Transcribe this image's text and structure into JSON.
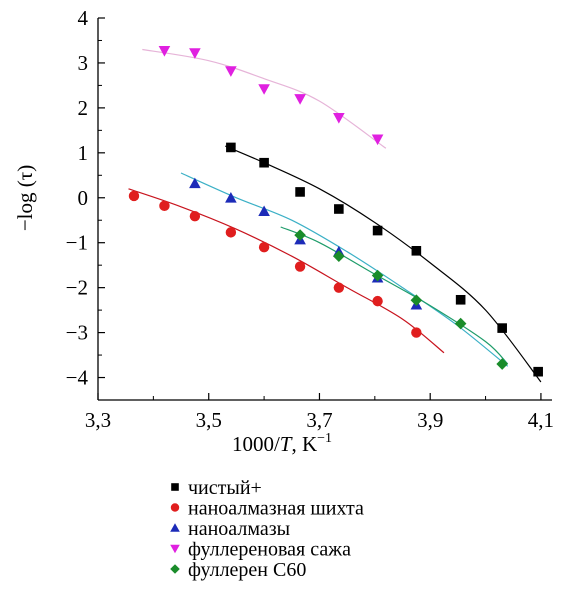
{
  "chart_data": {
    "type": "scatter",
    "xlabel": "1000/T, K⁻¹",
    "xlabel_parts": {
      "prefix": "1000/",
      "italic": "T",
      "suffix": ", K",
      "sup": "−1"
    },
    "ylabel": "−log (τ)",
    "xlim": [
      3.3,
      4.12
    ],
    "ylim": [
      -4.5,
      4
    ],
    "x_ticks": [
      3.3,
      3.5,
      3.7,
      3.9,
      4.1
    ],
    "x_tick_labels": [
      "3,3",
      "3,5",
      "3,7",
      "3,9",
      "4,1"
    ],
    "y_ticks": [
      -4,
      -3,
      -2,
      -1,
      0,
      1,
      2,
      3,
      4
    ],
    "y_tick_labels": [
      "−4",
      "−3",
      "−2",
      "−1",
      "0",
      "1",
      "2",
      "3",
      "4"
    ],
    "grid": false,
    "legend_position": "bottom",
    "series": [
      {
        "name": "чистый+",
        "marker": "square",
        "color": "#000000",
        "line_color": "#000000",
        "points": [
          [
            3.54,
            1.12
          ],
          [
            3.6,
            0.78
          ],
          [
            3.665,
            0.13
          ],
          [
            3.735,
            -0.25
          ],
          [
            3.805,
            -0.73
          ],
          [
            3.875,
            -1.18
          ],
          [
            3.955,
            -2.27
          ],
          [
            4.03,
            -2.9
          ],
          [
            4.095,
            -3.87
          ]
        ],
        "fit": [
          [
            3.53,
            1.15
          ],
          [
            3.6,
            0.78
          ],
          [
            3.7,
            0.2
          ],
          [
            3.8,
            -0.55
          ],
          [
            3.9,
            -1.45
          ],
          [
            4.0,
            -2.5
          ],
          [
            4.1,
            -4.1
          ]
        ]
      },
      {
        "name": "наноалмазная шихта",
        "marker": "circle",
        "color": "#e01e1e",
        "line_color": "#c8141e",
        "points": [
          [
            3.365,
            0.04
          ],
          [
            3.42,
            -0.18
          ],
          [
            3.475,
            -0.41
          ],
          [
            3.54,
            -0.77
          ],
          [
            3.6,
            -1.1
          ],
          [
            3.665,
            -1.53
          ],
          [
            3.735,
            -2.0
          ],
          [
            3.805,
            -2.3
          ],
          [
            3.875,
            -3.0
          ]
        ],
        "fit": [
          [
            3.355,
            0.2
          ],
          [
            3.45,
            -0.2
          ],
          [
            3.55,
            -0.7
          ],
          [
            3.65,
            -1.3
          ],
          [
            3.75,
            -2.0
          ],
          [
            3.85,
            -2.7
          ],
          [
            3.925,
            -3.45
          ]
        ]
      },
      {
        "name": "наноалмазы",
        "marker": "triangle",
        "color": "#1c2bb8",
        "line_color": "#3bb0c6",
        "points": [
          [
            3.475,
            0.32
          ],
          [
            3.54,
            0.0
          ],
          [
            3.6,
            -0.3
          ],
          [
            3.665,
            -0.93
          ],
          [
            3.735,
            -1.2
          ],
          [
            3.805,
            -1.78
          ],
          [
            3.875,
            -2.38
          ]
        ],
        "fit": [
          [
            3.45,
            0.55
          ],
          [
            3.55,
            0.0
          ],
          [
            3.65,
            -0.5
          ],
          [
            3.75,
            -1.2
          ],
          [
            3.85,
            -2.0
          ],
          [
            3.95,
            -2.85
          ],
          [
            4.04,
            -3.75
          ]
        ]
      },
      {
        "name": "фуллереновая сажа",
        "marker": "triangle-down",
        "color": "#e020e0",
        "line_color": "#e6b4d8",
        "points": [
          [
            3.42,
            3.27
          ],
          [
            3.475,
            3.22
          ],
          [
            3.54,
            2.82
          ],
          [
            3.6,
            2.42
          ],
          [
            3.665,
            2.2
          ],
          [
            3.735,
            1.78
          ],
          [
            3.805,
            1.3
          ]
        ],
        "fit": [
          [
            3.38,
            3.3
          ],
          [
            3.5,
            3.05
          ],
          [
            3.6,
            2.65
          ],
          [
            3.7,
            2.15
          ],
          [
            3.82,
            1.1
          ]
        ]
      },
      {
        "name": "фуллерен С60",
        "marker": "diamond",
        "color": "#1a8c2a",
        "line_color": "#1e9c6a",
        "points": [
          [
            3.665,
            -0.83
          ],
          [
            3.735,
            -1.3
          ],
          [
            3.805,
            -1.73
          ],
          [
            3.875,
            -2.28
          ],
          [
            3.955,
            -2.8
          ],
          [
            4.03,
            -3.7
          ]
        ],
        "fit": [
          [
            3.63,
            -0.65
          ],
          [
            3.7,
            -1.0
          ],
          [
            3.8,
            -1.7
          ],
          [
            3.9,
            -2.4
          ],
          [
            4.0,
            -3.2
          ],
          [
            4.04,
            -3.7
          ]
        ]
      }
    ]
  }
}
